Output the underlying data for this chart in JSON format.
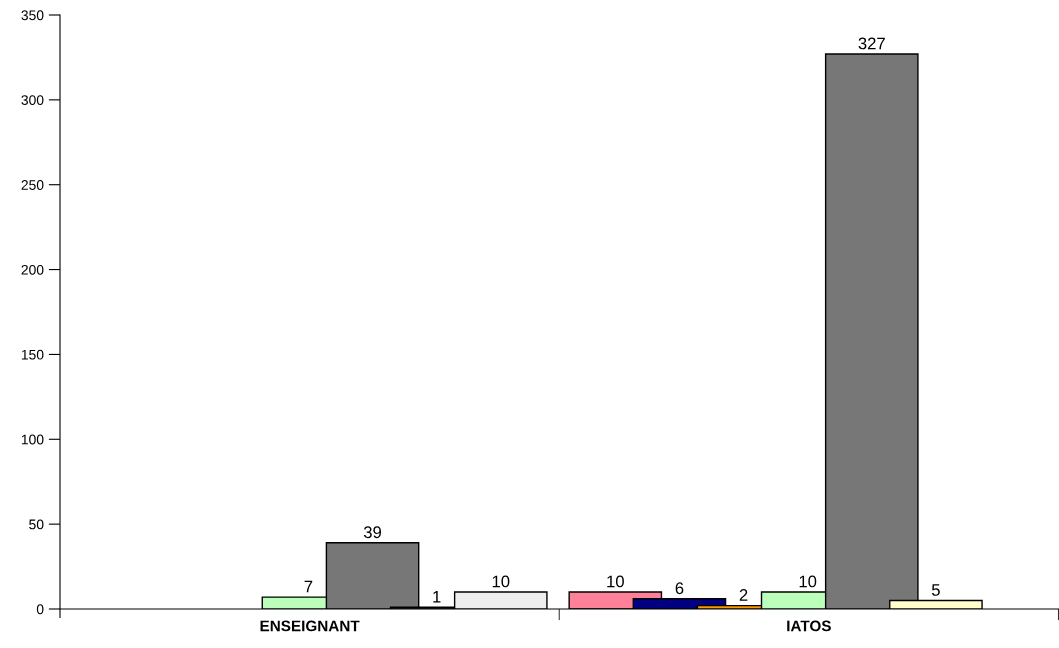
{
  "chart_data": {
    "type": "bar",
    "categories": [
      "ENSEIGNANT",
      "IATOS"
    ],
    "series": [
      {
        "color": "#ff8099",
        "values": [
          null,
          10
        ]
      },
      {
        "color": "#000080",
        "values": [
          null,
          6
        ]
      },
      {
        "color": "#ff9900",
        "values": [
          null,
          2
        ]
      },
      {
        "color": "#bbffbb",
        "values": [
          7,
          10
        ]
      },
      {
        "color": "#777777",
        "values": [
          39,
          327
        ]
      },
      {
        "colors": [
          "#3a3a2a",
          "#ffffcc"
        ],
        "values": [
          1,
          5
        ]
      },
      {
        "color": "#eeeeee",
        "values": [
          10,
          null
        ]
      }
    ],
    "ylim": [
      0,
      350
    ],
    "yticks": [
      0,
      50,
      100,
      150,
      200,
      250,
      300,
      350
    ],
    "data_labels": true,
    "grid": false,
    "legend": false
  }
}
